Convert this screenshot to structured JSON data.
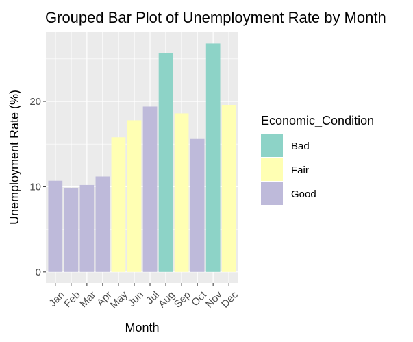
{
  "chart_data": {
    "type": "bar",
    "title": "Grouped Bar Plot of Unemployment Rate by Month",
    "xlabel": "Month",
    "ylabel": "Unemployment Rate (%)",
    "categories": [
      "Jan",
      "Feb",
      "Mar",
      "Apr",
      "May",
      "Jun",
      "Jul",
      "Aug",
      "Sep",
      "Oct",
      "Nov",
      "Dec"
    ],
    "values": [
      10.7,
      9.8,
      10.2,
      11.2,
      15.8,
      17.8,
      19.4,
      25.7,
      18.6,
      15.6,
      26.8,
      19.6
    ],
    "conditions": [
      "Good",
      "Good",
      "Good",
      "Good",
      "Fair",
      "Fair",
      "Good",
      "Bad",
      "Fair",
      "Good",
      "Bad",
      "Fair"
    ],
    "ylim": [
      -1.3,
      28.2
    ],
    "yticks": [
      0,
      10,
      20
    ],
    "grid": true,
    "legend": {
      "title": "Economic_Condition",
      "position": "right",
      "entries": [
        {
          "name": "Bad",
          "color": "#8dd3c7"
        },
        {
          "name": "Fair",
          "color": "#ffffb3"
        },
        {
          "name": "Good",
          "color": "#bebada"
        }
      ]
    },
    "panel_background": "#ebebeb",
    "grid_color": "#ffffff"
  }
}
